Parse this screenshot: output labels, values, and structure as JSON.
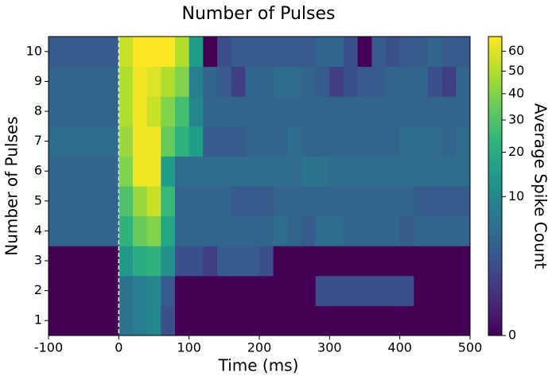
{
  "chart_data": {
    "type": "heatmap",
    "title": "Number of Pulses",
    "x_label": "Time (ms)",
    "y_label": "Number of Pulses",
    "colorbar_label": "Average Spike Count",
    "x_edges": [
      -100,
      -80,
      -60,
      -40,
      -20,
      0,
      20,
      40,
      60,
      80,
      100,
      120,
      140,
      160,
      180,
      200,
      220,
      240,
      260,
      280,
      300,
      320,
      340,
      360,
      380,
      400,
      420,
      440,
      460,
      480,
      500
    ],
    "categories": [
      1,
      2,
      3,
      4,
      5,
      6,
      7,
      8,
      9,
      10
    ],
    "z": [
      [
        0,
        0,
        0,
        0,
        0,
        6,
        8,
        10,
        2,
        0,
        0,
        0,
        0,
        0,
        0,
        0,
        0,
        0,
        0,
        0,
        0,
        0,
        0,
        0,
        0,
        0,
        0,
        0,
        0,
        0
      ],
      [
        0,
        0,
        0,
        0,
        0,
        6,
        8,
        10,
        3,
        0,
        0,
        0,
        0,
        0,
        0,
        0,
        0,
        0,
        0,
        2,
        2,
        2,
        2,
        2,
        2,
        2,
        0,
        0,
        0,
        0
      ],
      [
        0,
        0,
        0,
        0,
        0,
        14,
        20,
        22,
        12,
        2,
        2,
        1,
        3,
        3,
        3,
        2,
        0,
        0,
        0,
        0,
        0,
        0,
        0,
        0,
        0,
        0,
        0,
        0,
        0,
        0
      ],
      [
        4,
        4,
        4,
        4,
        4,
        22,
        35,
        40,
        18,
        4,
        4,
        4,
        4,
        4,
        4,
        4,
        5,
        4,
        3,
        5,
        5,
        4,
        4,
        4,
        4,
        3,
        4,
        4,
        4,
        4
      ],
      [
        4,
        4,
        4,
        4,
        4,
        30,
        45,
        55,
        25,
        4,
        4,
        4,
        4,
        3,
        3,
        3,
        4,
        4,
        4,
        4,
        4,
        4,
        4,
        4,
        4,
        4,
        3,
        3,
        3,
        3
      ],
      [
        4,
        4,
        4,
        4,
        4,
        40,
        65,
        65,
        15,
        5,
        5,
        5,
        5,
        5,
        5,
        5,
        5,
        5,
        6,
        6,
        5,
        5,
        5,
        5,
        5,
        5,
        5,
        5,
        5,
        5
      ],
      [
        5,
        5,
        5,
        5,
        5,
        45,
        65,
        65,
        35,
        22,
        15,
        3,
        3,
        3,
        4,
        4,
        4,
        5,
        4,
        4,
        4,
        4,
        4,
        4,
        4,
        5,
        5,
        5,
        4,
        5
      ],
      [
        4,
        4,
        4,
        4,
        4,
        50,
        65,
        55,
        40,
        28,
        10,
        4,
        4,
        4,
        4,
        4,
        4,
        4,
        4,
        4,
        4,
        4,
        4,
        4,
        4,
        4,
        4,
        4,
        4,
        4
      ],
      [
        4,
        4,
        4,
        4,
        4,
        50,
        65,
        60,
        50,
        40,
        8,
        4,
        3,
        1,
        4,
        4,
        5,
        5,
        4,
        3,
        1,
        2,
        3,
        3,
        4,
        4,
        4,
        2,
        1,
        4
      ],
      [
        3,
        3,
        3,
        3,
        3,
        55,
        68,
        68,
        68,
        50,
        15,
        0,
        2,
        3,
        3,
        3,
        3,
        3,
        3,
        4,
        4,
        2,
        0,
        3,
        2,
        3,
        3,
        4,
        3,
        3
      ]
    ],
    "xlim": [
      -100,
      500
    ],
    "xticks": [
      -100,
      0,
      100,
      200,
      300,
      400,
      500
    ],
    "vline": 0,
    "colormap": "viridis",
    "color_norm": {
      "type": "power",
      "gamma": 0.4
    },
    "clim": [
      0,
      68
    ],
    "cticks": [
      0,
      10,
      20,
      30,
      40,
      50,
      60
    ]
  }
}
